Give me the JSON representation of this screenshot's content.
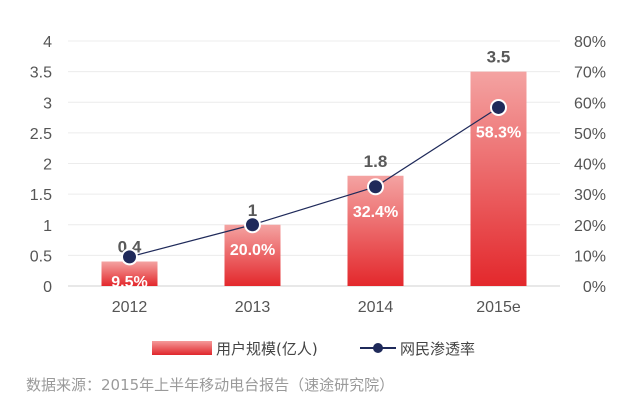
{
  "chart_data": {
    "type": "bar",
    "categories": [
      "2012",
      "2013",
      "2014",
      "2015e"
    ],
    "series": [
      {
        "name": "用户规模(亿人)",
        "type": "bar",
        "axis": "left",
        "values": [
          0.4,
          1,
          1.8,
          3.5
        ],
        "labels": [
          "0.4",
          "1",
          "1.8",
          "3.5"
        ],
        "color": "#e83a3d"
      },
      {
        "name": "网民渗透率",
        "type": "line",
        "axis": "right",
        "values": [
          9.5,
          20.0,
          32.4,
          58.3
        ],
        "labels": [
          "9.5%",
          "20.0%",
          "32.4%",
          "58.3%"
        ],
        "color": "#1f2a5a"
      }
    ],
    "y_left": {
      "ylim": [
        0,
        4
      ],
      "ticks": [
        "0",
        "0.5",
        "1",
        "1.5",
        "2",
        "2.5",
        "3",
        "3.5",
        "4"
      ]
    },
    "y_right": {
      "ylim": [
        0,
        80
      ],
      "ticks": [
        "0%",
        "10%",
        "20%",
        "30%",
        "40%",
        "50%",
        "60%",
        "70%",
        "80%"
      ]
    },
    "grid": true,
    "legend_position": "bottom"
  },
  "legend": {
    "bar_label": "用户规模(亿人)",
    "line_label": "网民渗透率"
  },
  "source_note": "数据来源：2015年上半年移动电台报告（速途研究院）"
}
